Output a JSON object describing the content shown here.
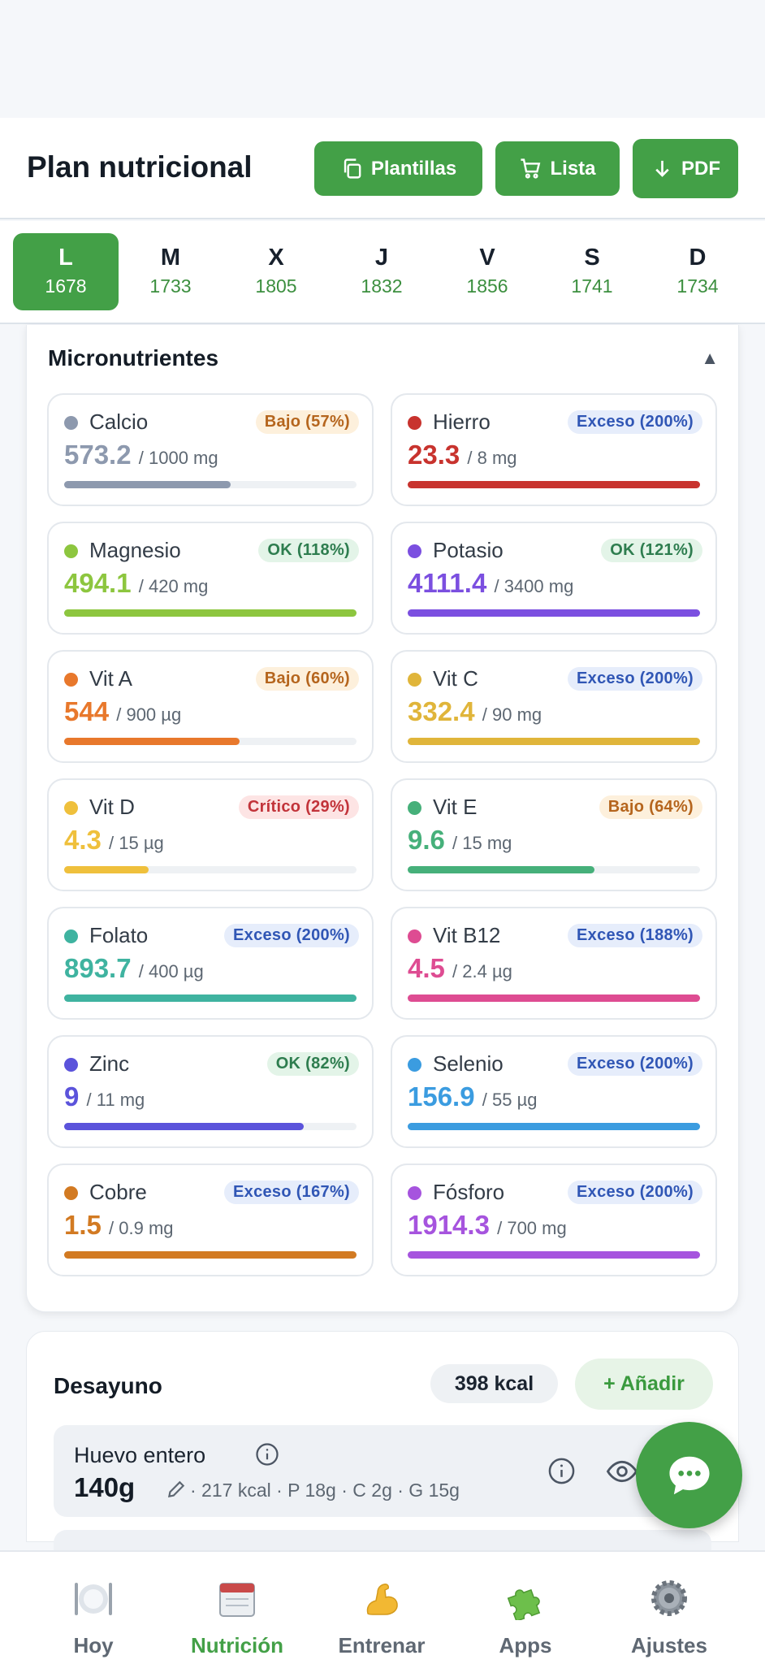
{
  "header": {
    "title": "Plan nutricional",
    "buttons": [
      {
        "label": "Plantillas",
        "icon": "copy-icon"
      },
      {
        "label": "Lista",
        "icon": "cart-icon"
      },
      {
        "label": "PDF",
        "icon": "download-arrow-icon"
      }
    ]
  },
  "days": [
    {
      "letter": "L",
      "kcal": "1678",
      "active": true
    },
    {
      "letter": "M",
      "kcal": "1733",
      "active": false
    },
    {
      "letter": "X",
      "kcal": "1805",
      "active": false
    },
    {
      "letter": "J",
      "kcal": "1832",
      "active": false
    },
    {
      "letter": "V",
      "kcal": "1856",
      "active": false
    },
    {
      "letter": "S",
      "kcal": "1741",
      "active": false
    },
    {
      "letter": "D",
      "kcal": "1734",
      "active": false
    }
  ],
  "micronutrients": {
    "title": "Micronutrientes",
    "toggle": "▲",
    "items": [
      {
        "name": "Calcio",
        "badge": "Bajo (57%)",
        "status": "low",
        "value": "573.2",
        "target": "/ 1000 mg",
        "percent": 57,
        "color": "#8d99ae"
      },
      {
        "name": "Hierro",
        "badge": "Exceso (200%)",
        "status": "excess",
        "value": "23.3",
        "target": "/ 8 mg",
        "percent": 100,
        "color": "#c8332e"
      },
      {
        "name": "Magnesio",
        "badge": "OK (118%)",
        "status": "ok",
        "value": "494.1",
        "target": "/ 420 mg",
        "percent": 100,
        "color": "#8dc63f"
      },
      {
        "name": "Potasio",
        "badge": "OK (121%)",
        "status": "ok",
        "value": "4111.4",
        "target": "/ 3400 mg",
        "percent": 100,
        "color": "#7b4fe0"
      },
      {
        "name": "Vit A",
        "badge": "Bajo (60%)",
        "status": "low",
        "value": "544",
        "target": "/ 900 µg",
        "percent": 60,
        "color": "#e8782c"
      },
      {
        "name": "Vit C",
        "badge": "Exceso (200%)",
        "status": "excess",
        "value": "332.4",
        "target": "/ 90 mg",
        "percent": 100,
        "color": "#e0b53a"
      },
      {
        "name": "Vit D",
        "badge": "Crítico (29%)",
        "status": "critical",
        "value": "4.3",
        "target": "/ 15 µg",
        "percent": 29,
        "color": "#efc03c"
      },
      {
        "name": "Vit E",
        "badge": "Bajo (64%)",
        "status": "low",
        "value": "9.6",
        "target": "/ 15 mg",
        "percent": 64,
        "color": "#46b07a"
      },
      {
        "name": "Folato",
        "badge": "Exceso (200%)",
        "status": "excess",
        "value": "893.7",
        "target": "/ 400 µg",
        "percent": 100,
        "color": "#3fb3a0"
      },
      {
        "name": "Vit B12",
        "badge": "Exceso (188%)",
        "status": "excess",
        "value": "4.5",
        "target": "/ 2.4 µg",
        "percent": 100,
        "color": "#de4c92"
      },
      {
        "name": "Zinc",
        "badge": "OK (82%)",
        "status": "ok",
        "value": "9",
        "target": "/ 11 mg",
        "percent": 82,
        "color": "#5b53db"
      },
      {
        "name": "Selenio",
        "badge": "Exceso (200%)",
        "status": "excess",
        "value": "156.9",
        "target": "/ 55 µg",
        "percent": 100,
        "color": "#3b9ce0"
      },
      {
        "name": "Cobre",
        "badge": "Exceso (167%)",
        "status": "excess",
        "value": "1.5",
        "target": "/ 0.9 mg",
        "percent": 100,
        "color": "#d27a22"
      },
      {
        "name": "Fósforo",
        "badge": "Exceso (200%)",
        "status": "excess",
        "value": "1914.3",
        "target": "/ 700 mg",
        "percent": 100,
        "color": "#a654de"
      }
    ]
  },
  "badge_styles": {
    "low": {
      "bg": "#fdf0dc",
      "fg": "#b5651d"
    },
    "excess": {
      "bg": "#e6edfb",
      "fg": "#3056b5"
    },
    "ok": {
      "bg": "#e3f4e8",
      "fg": "#2e7d4f"
    },
    "critical": {
      "bg": "#fde4e4",
      "fg": "#c2333a"
    }
  },
  "meal": {
    "title": "Desayuno",
    "kcal": "398 kcal",
    "add_label": "+ Añadir",
    "food": {
      "name": "Huevo entero",
      "quantity": "140g",
      "macros": "· 217 kcal · P 18g · C 2g · G 15g"
    }
  },
  "nav": [
    {
      "label": "Hoy",
      "icon": "plate-icon",
      "active": false
    },
    {
      "label": "Nutrición",
      "icon": "calendar-icon",
      "active": true
    },
    {
      "label": "Entrenar",
      "icon": "flexed-arm-icon",
      "active": false
    },
    {
      "label": "Apps",
      "icon": "puzzle-icon",
      "active": false
    },
    {
      "label": "Ajustes",
      "icon": "gear-icon",
      "active": false
    }
  ],
  "colors": {
    "accent": "#43a047"
  }
}
